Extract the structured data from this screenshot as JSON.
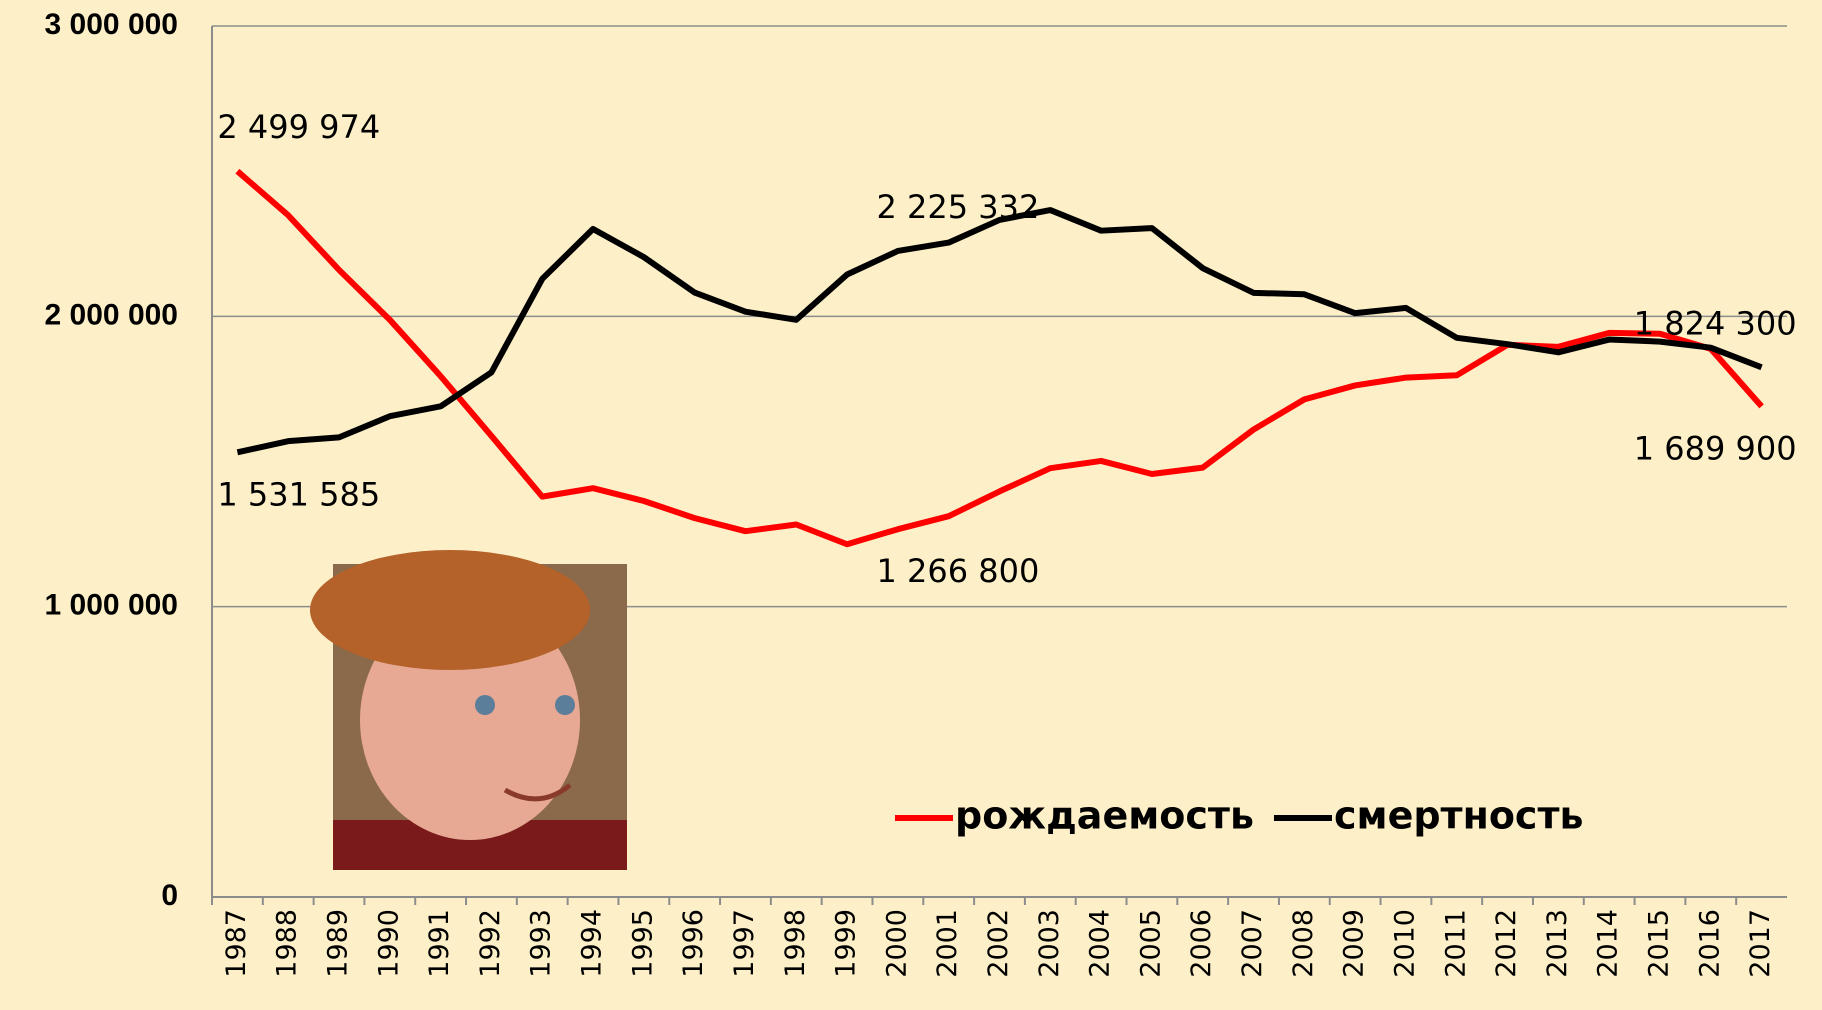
{
  "chart_data": {
    "type": "line",
    "categories": [
      "1987",
      "1988",
      "1989",
      "1990",
      "1991",
      "1992",
      "1993",
      "1994",
      "1995",
      "1996",
      "1997",
      "1998",
      "1999",
      "2000",
      "2001",
      "2002",
      "2003",
      "2004",
      "2005",
      "2006",
      "2007",
      "2008",
      "2009",
      "2010",
      "2011",
      "2012",
      "2013",
      "2014",
      "2015",
      "2016",
      "2017"
    ],
    "series": [
      {
        "name": "рождаемость",
        "color": "#ff0000",
        "values": [
          2499974,
          2348000,
          2160000,
          1988000,
          1794000,
          1588000,
          1379000,
          1408000,
          1364000,
          1305000,
          1260000,
          1283000,
          1215000,
          1266800,
          1311600,
          1397000,
          1477000,
          1502000,
          1457000,
          1479000,
          1610000,
          1714000,
          1762000,
          1789000,
          1797000,
          1902000,
          1895000,
          1943000,
          1940000,
          1888000,
          1689900
        ],
        "value_labels": [
          "2 499 974",
          null,
          null,
          null,
          null,
          null,
          null,
          null,
          null,
          null,
          null,
          null,
          null,
          "1 266 800",
          null,
          null,
          null,
          null,
          null,
          null,
          null,
          null,
          null,
          null,
          null,
          null,
          null,
          null,
          null,
          null,
          "1 689 900"
        ]
      },
      {
        "name": "смертность",
        "color": "#000000",
        "values": [
          1531585,
          1570000,
          1583000,
          1656000,
          1690000,
          1807000,
          2129000,
          2301000,
          2204000,
          2082000,
          2016000,
          1988000,
          2144000,
          2225332,
          2254000,
          2332000,
          2366000,
          2295000,
          2304000,
          2166000,
          2081000,
          2076000,
          2011000,
          2029000,
          1926000,
          1904000,
          1876000,
          1920000,
          1913000,
          1892000,
          1824300
        ],
        "value_labels": [
          "1 531 585",
          null,
          null,
          null,
          null,
          null,
          null,
          null,
          null,
          null,
          null,
          null,
          null,
          "2 225 332",
          null,
          null,
          null,
          null,
          null,
          null,
          null,
          null,
          null,
          null,
          null,
          null,
          null,
          null,
          null,
          null,
          "1 824 300"
        ]
      }
    ],
    "ylim": [
      0,
      3000000
    ],
    "yticks": [
      0,
      {
        "value": 1000000,
        "label": "1 000 000"
      },
      {
        "value": 2000000,
        "label": "2 000 000"
      },
      {
        "value": 3000000,
        "label": "3 000 000"
      }
    ],
    "grid": true,
    "legend": "lower right"
  }
}
